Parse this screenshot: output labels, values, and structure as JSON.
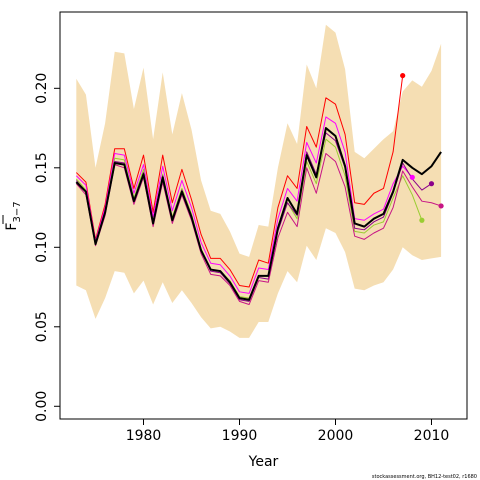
{
  "chart_data": {
    "type": "line",
    "title": "",
    "xlabel": "Year",
    "ylabel": "F̄₃₋₇",
    "ylabel_base": "F",
    "ylabel_sub": "3−7",
    "xlim": [
      1971.3,
      2013.7
    ],
    "ylim": [
      -0.008,
      0.248
    ],
    "xticks": [
      1980,
      1990,
      2000,
      2010
    ],
    "yticks": [
      0.0,
      0.05,
      0.1,
      0.15,
      0.2
    ],
    "ytick_labels": [
      "0.00",
      "0.05",
      "0.10",
      "0.15",
      "0.20"
    ],
    "grid": false,
    "band": {
      "color": "#f5deb3",
      "x": [
        1973,
        1974,
        1975,
        1976,
        1977,
        1978,
        1979,
        1980,
        1981,
        1982,
        1983,
        1984,
        1985,
        1986,
        1987,
        1988,
        1989,
        1990,
        1991,
        1992,
        1993,
        1994,
        1995,
        1996,
        1997,
        1998,
        1999,
        2000,
        2001,
        2002,
        2003,
        2004,
        2005,
        2006,
        2007,
        2008,
        2009,
        2010,
        2011
      ],
      "upper": [
        0.206,
        0.196,
        0.15,
        0.178,
        0.223,
        0.222,
        0.187,
        0.213,
        0.168,
        0.21,
        0.171,
        0.197,
        0.174,
        0.142,
        0.123,
        0.121,
        0.11,
        0.096,
        0.094,
        0.114,
        0.113,
        0.15,
        0.178,
        0.165,
        0.215,
        0.2,
        0.24,
        0.235,
        0.212,
        0.16,
        0.156,
        0.162,
        0.168,
        0.173,
        0.198,
        0.205,
        0.201,
        0.211,
        0.228
      ],
      "lower": [
        0.076,
        0.073,
        0.055,
        0.068,
        0.085,
        0.084,
        0.071,
        0.079,
        0.064,
        0.078,
        0.065,
        0.073,
        0.065,
        0.056,
        0.049,
        0.05,
        0.047,
        0.043,
        0.043,
        0.053,
        0.053,
        0.071,
        0.085,
        0.078,
        0.101,
        0.092,
        0.112,
        0.109,
        0.097,
        0.074,
        0.073,
        0.076,
        0.078,
        0.086,
        0.1,
        0.095,
        0.092,
        0.093,
        0.094
      ]
    },
    "series": [
      {
        "color": "#000000",
        "width": 2,
        "x": [
          1973,
          1974,
          1975,
          1976,
          1977,
          1978,
          1979,
          1980,
          1981,
          1982,
          1983,
          1984,
          1985,
          1986,
          1987,
          1988,
          1989,
          1990,
          1991,
          1992,
          1993,
          1994,
          1995,
          1996,
          1997,
          1998,
          1999,
          2000,
          2001,
          2002,
          2003,
          2004,
          2005,
          2006,
          2007,
          2008,
          2009,
          2010,
          2011
        ],
        "values": [
          0.141,
          0.135,
          0.102,
          0.122,
          0.153,
          0.152,
          0.129,
          0.146,
          0.115,
          0.144,
          0.117,
          0.135,
          0.119,
          0.098,
          0.086,
          0.085,
          0.078,
          0.068,
          0.067,
          0.082,
          0.082,
          0.112,
          0.131,
          0.121,
          0.158,
          0.144,
          0.175,
          0.17,
          0.151,
          0.115,
          0.113,
          0.118,
          0.121,
          0.135,
          0.155,
          0.15,
          0.146,
          0.151,
          0.16
        ]
      },
      {
        "color": "#ff0000",
        "width": 1,
        "end_marker": true,
        "x": [
          1973,
          1974,
          1975,
          1976,
          1977,
          1978,
          1979,
          1980,
          1981,
          1982,
          1983,
          1984,
          1985,
          1986,
          1987,
          1988,
          1989,
          1990,
          1991,
          1992,
          1993,
          1994,
          1995,
          1996,
          1997,
          1998,
          1999,
          2000,
          2001,
          2002,
          2003,
          2004,
          2005,
          2006,
          2007
        ],
        "values": [
          0.147,
          0.141,
          0.105,
          0.127,
          0.162,
          0.162,
          0.137,
          0.158,
          0.122,
          0.158,
          0.128,
          0.149,
          0.13,
          0.108,
          0.093,
          0.093,
          0.086,
          0.076,
          0.075,
          0.092,
          0.09,
          0.125,
          0.145,
          0.137,
          0.176,
          0.163,
          0.194,
          0.19,
          0.171,
          0.128,
          0.127,
          0.134,
          0.137,
          0.16,
          0.208
        ]
      },
      {
        "color": "#ff00ff",
        "width": 1,
        "end_marker": true,
        "x": [
          1973,
          1974,
          1975,
          1976,
          1977,
          1978,
          1979,
          1980,
          1981,
          1982,
          1983,
          1984,
          1985,
          1986,
          1987,
          1988,
          1989,
          1990,
          1991,
          1992,
          1993,
          1994,
          1995,
          1996,
          1997,
          1998,
          1999,
          2000,
          2001,
          2002,
          2003,
          2004,
          2005,
          2006,
          2007,
          2008
        ],
        "values": [
          0.145,
          0.139,
          0.104,
          0.125,
          0.159,
          0.158,
          0.134,
          0.152,
          0.119,
          0.151,
          0.123,
          0.142,
          0.125,
          0.103,
          0.09,
          0.089,
          0.082,
          0.072,
          0.071,
          0.087,
          0.086,
          0.118,
          0.137,
          0.129,
          0.166,
          0.153,
          0.182,
          0.178,
          0.16,
          0.118,
          0.117,
          0.121,
          0.124,
          0.14,
          0.151,
          0.144
        ]
      },
      {
        "color": "#9acd32",
        "width": 1,
        "end_marker": true,
        "x": [
          1973,
          1974,
          1975,
          1976,
          1977,
          1978,
          1979,
          1980,
          1981,
          1982,
          1983,
          1984,
          1985,
          1986,
          1987,
          1988,
          1989,
          1990,
          1991,
          1992,
          1993,
          1994,
          1995,
          1996,
          1997,
          1998,
          1999,
          2000,
          2001,
          2002,
          2003,
          2004,
          2005,
          2006,
          2007,
          2008,
          2009
        ],
        "values": [
          0.143,
          0.136,
          0.103,
          0.123,
          0.156,
          0.155,
          0.131,
          0.149,
          0.116,
          0.146,
          0.119,
          0.137,
          0.121,
          0.099,
          0.086,
          0.085,
          0.079,
          0.069,
          0.068,
          0.082,
          0.082,
          0.112,
          0.128,
          0.118,
          0.154,
          0.14,
          0.168,
          0.163,
          0.145,
          0.11,
          0.109,
          0.114,
          0.116,
          0.131,
          0.145,
          0.133,
          0.117
        ]
      },
      {
        "color": "#8b008b",
        "width": 1,
        "end_marker": true,
        "x": [
          1973,
          1974,
          1975,
          1976,
          1977,
          1978,
          1979,
          1980,
          1981,
          1982,
          1983,
          1984,
          1985,
          1986,
          1987,
          1988,
          1989,
          1990,
          1991,
          1992,
          1993,
          1994,
          1995,
          1996,
          1997,
          1998,
          1999,
          2000,
          2001,
          2002,
          2003,
          2004,
          2005,
          2006,
          2007,
          2008,
          2009,
          2010
        ],
        "values": [
          0.142,
          0.135,
          0.102,
          0.122,
          0.154,
          0.153,
          0.129,
          0.147,
          0.115,
          0.145,
          0.118,
          0.136,
          0.12,
          0.098,
          0.085,
          0.084,
          0.077,
          0.067,
          0.066,
          0.081,
          0.08,
          0.11,
          0.128,
          0.12,
          0.16,
          0.146,
          0.172,
          0.167,
          0.15,
          0.112,
          0.111,
          0.116,
          0.119,
          0.134,
          0.153,
          0.143,
          0.136,
          0.14
        ]
      },
      {
        "color": "#c71585",
        "width": 1,
        "end_marker": true,
        "x": [
          1973,
          1974,
          1975,
          1976,
          1977,
          1978,
          1979,
          1980,
          1981,
          1982,
          1983,
          1984,
          1985,
          1986,
          1987,
          1988,
          1989,
          1990,
          1991,
          1992,
          1993,
          1994,
          1995,
          1996,
          1997,
          1998,
          1999,
          2000,
          2001,
          2002,
          2003,
          2004,
          2005,
          2006,
          2007,
          2008,
          2009,
          2010,
          2011
        ],
        "values": [
          0.14,
          0.133,
          0.101,
          0.12,
          0.152,
          0.15,
          0.127,
          0.144,
          0.113,
          0.141,
          0.115,
          0.133,
          0.117,
          0.096,
          0.083,
          0.082,
          0.076,
          0.066,
          0.064,
          0.079,
          0.078,
          0.106,
          0.122,
          0.113,
          0.15,
          0.134,
          0.159,
          0.154,
          0.138,
          0.107,
          0.105,
          0.109,
          0.112,
          0.125,
          0.148,
          0.138,
          0.129,
          0.128,
          0.126
        ]
      }
    ]
  },
  "footer_text": "stockassessment.org, BH12-test02, r1680"
}
